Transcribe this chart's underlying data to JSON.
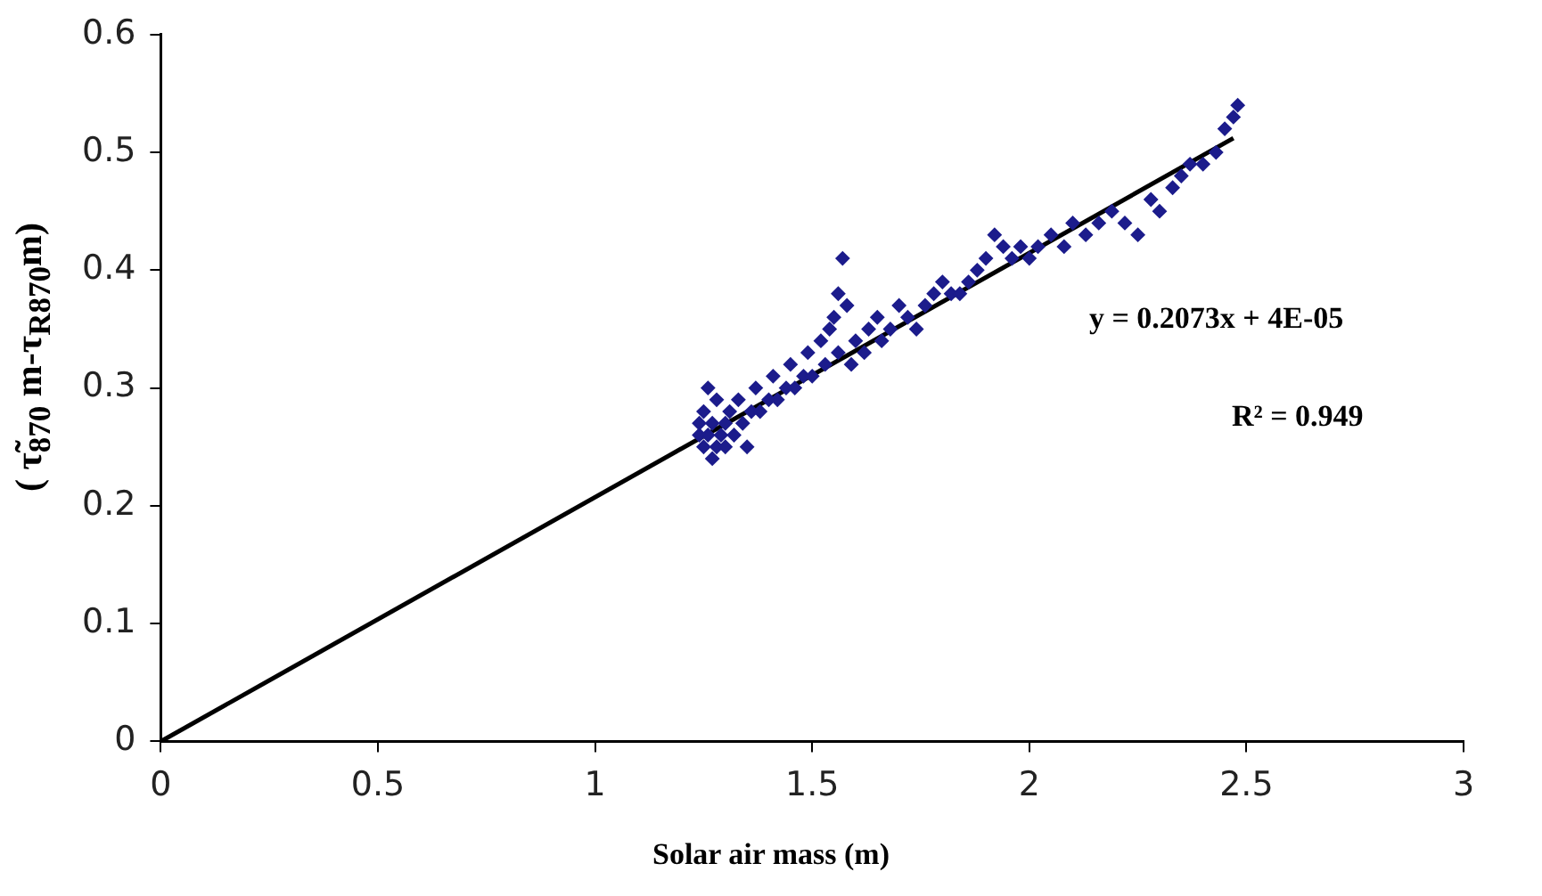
{
  "chart_data": {
    "type": "scatter",
    "xlabel": "Solar air mass (m)",
    "ylabel": "( τ̃$_{870}$ m-τ$_{R870}$m)",
    "xlim": [
      0,
      3
    ],
    "xticks": [
      0,
      0.5,
      1,
      1.5,
      2,
      2.5,
      3
    ],
    "ylim": [
      0,
      0.6
    ],
    "yticks": [
      0,
      0.1,
      0.2,
      0.3,
      0.4,
      0.5,
      0.6
    ],
    "grid": false,
    "legend": false,
    "annotations": [
      "y = 0.2073x + 4E-05",
      "R² = 0.949"
    ],
    "series": [
      {
        "color": "#1c1c8c",
        "marker": "diamond",
        "x": [
          1.24,
          1.24,
          1.25,
          1.25,
          1.26,
          1.26,
          1.27,
          1.27,
          1.28,
          1.28,
          1.29,
          1.3,
          1.3,
          1.31,
          1.32,
          1.33,
          1.34,
          1.35,
          1.36,
          1.37,
          1.38,
          1.4,
          1.41,
          1.42,
          1.44,
          1.45,
          1.46,
          1.48,
          1.49,
          1.5,
          1.52,
          1.53,
          1.54,
          1.55,
          1.56,
          1.56,
          1.57,
          1.58,
          1.59,
          1.6,
          1.62,
          1.63,
          1.65,
          1.66,
          1.68,
          1.7,
          1.72,
          1.74,
          1.76,
          1.78,
          1.8,
          1.82,
          1.84,
          1.86,
          1.88,
          1.9,
          1.92,
          1.94,
          1.96,
          1.98,
          2.0,
          2.02,
          2.05,
          2.08,
          2.1,
          2.13,
          2.16,
          2.19,
          2.22,
          2.25,
          2.28,
          2.3,
          2.33,
          2.35,
          2.37,
          2.4,
          2.43,
          2.45,
          2.47,
          2.48
        ],
        "values": [
          0.26,
          0.27,
          0.25,
          0.28,
          0.26,
          0.3,
          0.24,
          0.27,
          0.25,
          0.29,
          0.26,
          0.27,
          0.25,
          0.28,
          0.26,
          0.29,
          0.27,
          0.25,
          0.28,
          0.3,
          0.28,
          0.29,
          0.31,
          0.29,
          0.3,
          0.32,
          0.3,
          0.31,
          0.33,
          0.31,
          0.34,
          0.32,
          0.35,
          0.36,
          0.38,
          0.33,
          0.41,
          0.37,
          0.32,
          0.34,
          0.33,
          0.35,
          0.36,
          0.34,
          0.35,
          0.37,
          0.36,
          0.35,
          0.37,
          0.38,
          0.39,
          0.38,
          0.38,
          0.39,
          0.4,
          0.41,
          0.43,
          0.42,
          0.41,
          0.42,
          0.41,
          0.42,
          0.43,
          0.42,
          0.44,
          0.43,
          0.44,
          0.45,
          0.44,
          0.43,
          0.46,
          0.45,
          0.47,
          0.48,
          0.49,
          0.49,
          0.5,
          0.52,
          0.53,
          0.54
        ]
      },
      {
        "type": "line",
        "color": "#000000",
        "x": [
          0,
          2.47
        ],
        "values": [
          0,
          0.512
        ]
      }
    ]
  }
}
